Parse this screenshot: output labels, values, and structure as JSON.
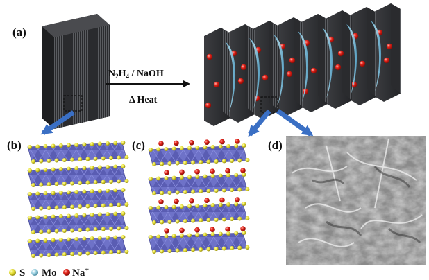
{
  "panels": {
    "a": "(a)",
    "b": "(b)",
    "c": "(c)",
    "d": "(d)"
  },
  "reaction": {
    "reagent_main": "N",
    "reagent_sub1": "2",
    "reagent_mid": "H",
    "reagent_sub2": "4",
    "reagent_tail": " / NaOH",
    "condition": "Δ Heat"
  },
  "legend": {
    "s": "S",
    "mo": "Mo",
    "na": "Na",
    "na_sup": "+"
  },
  "colors": {
    "sheet": "#2f3033",
    "sheet_edge": "#55575b",
    "intercalant": "#7fc6e6",
    "na": "#e2231a",
    "s": "#e8e23a",
    "mo": "#9fd3e3",
    "octahedron": "#6e72c8",
    "arrow_blue": "#3a6fc4",
    "sem_bg": "#8d8d8d"
  }
}
